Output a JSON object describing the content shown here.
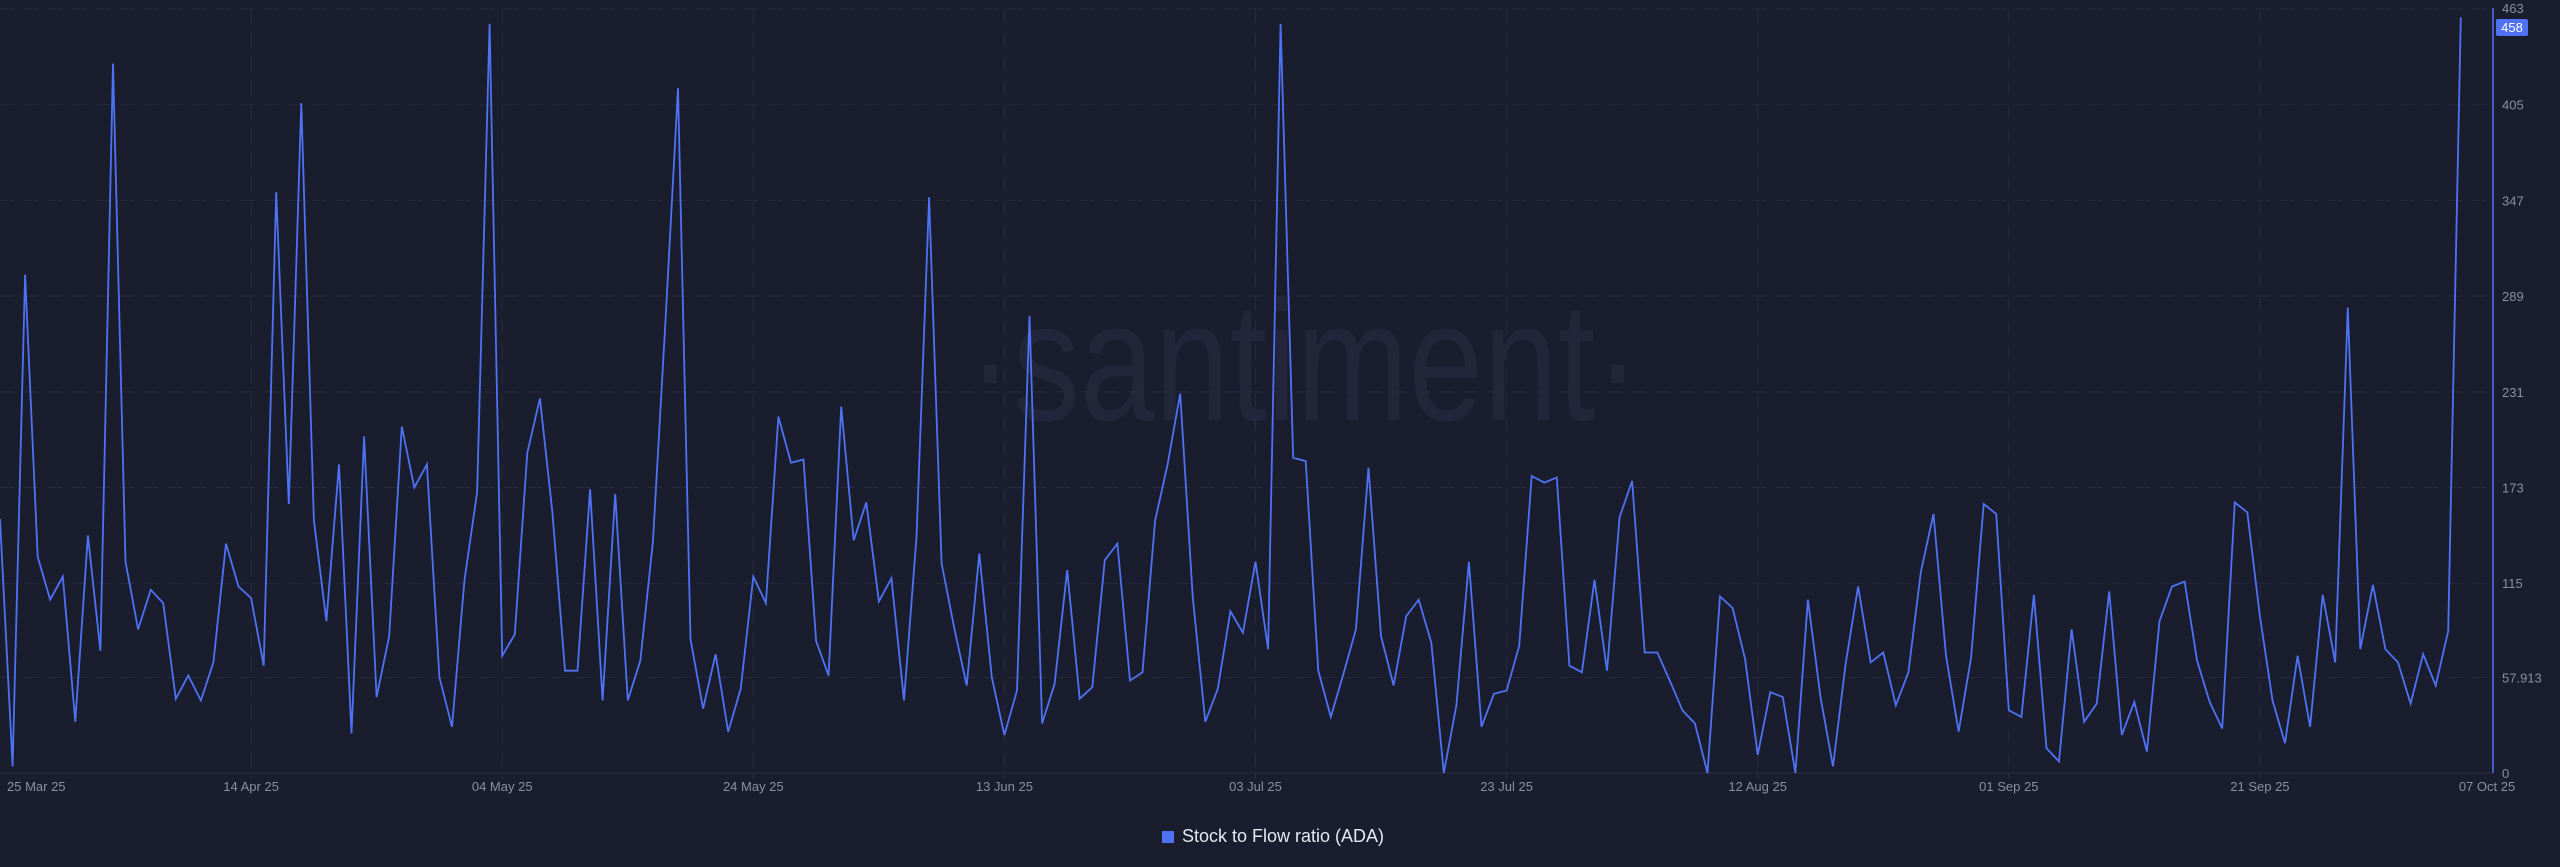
{
  "watermark": "·santiment·",
  "colors": {
    "background": "#1a1d2e",
    "series": "#4f72f5",
    "grid": "#272b3d",
    "tick_text": "#8a8fa3"
  },
  "chart_data": {
    "type": "line",
    "x_range": [
      "25 Mar 25",
      "07 Oct 25"
    ],
    "interval": "1d",
    "x_ticks": [
      "25 Mar 25",
      "14 Apr 25",
      "04 May 25",
      "24 May 25",
      "13 Jun 25",
      "03 Jul 25",
      "23 Jul 25",
      "12 Aug 25",
      "01 Sep 25",
      "21 Sep 25",
      "07 Oct 25"
    ],
    "y_ticks": [
      "0",
      "57.913",
      "115",
      "173",
      "231",
      "289",
      "347",
      "405",
      "463"
    ],
    "ylim": [
      0,
      463
    ],
    "y_axis_position": "right",
    "grid": true,
    "legend_position": "bottom-center",
    "last_value_badge": "458",
    "series": [
      {
        "name": "Stock to Flow ratio (ADA)",
        "values": [
          154,
          4,
          302,
          131,
          105,
          119,
          31,
          144,
          74,
          430,
          128,
          87,
          111,
          103,
          45,
          59,
          44,
          67,
          139,
          113,
          106,
          65,
          352,
          163,
          406,
          153,
          92,
          187,
          24,
          204,
          46,
          83,
          210,
          173,
          187,
          58,
          28,
          117,
          170,
          454,
          71,
          84,
          194,
          227,
          158,
          62,
          62,
          172,
          44,
          169,
          44,
          68,
          140,
          273,
          415,
          81,
          39,
          72,
          25,
          51,
          119,
          103,
          216,
          188,
          190,
          80,
          59,
          222,
          141,
          164,
          104,
          118,
          44,
          143,
          349,
          127,
          88,
          53,
          133,
          58,
          23,
          50,
          277,
          30,
          54,
          123,
          45,
          52,
          129,
          139,
          56,
          61,
          153,
          187,
          230,
          107,
          31,
          51,
          98,
          85,
          128,
          75,
          454,
          191,
          189,
          62,
          34,
          60,
          87,
          185,
          83,
          53,
          95,
          105,
          79,
          0,
          41,
          128,
          28,
          48,
          50,
          77,
          180,
          176,
          179,
          65,
          61,
          117,
          62,
          155,
          177,
          73,
          73,
          56,
          38,
          30,
          0,
          107,
          100,
          69,
          11,
          49,
          46,
          0,
          105,
          46,
          4,
          66,
          113,
          67,
          73,
          41,
          61,
          122,
          157,
          71,
          25,
          70,
          163,
          157,
          38,
          34,
          108,
          15,
          7,
          87,
          31,
          42,
          110,
          23,
          43,
          13,
          92,
          113,
          116,
          68,
          43,
          27,
          164,
          158,
          95,
          44,
          18,
          71,
          28,
          108,
          67,
          282,
          75,
          114,
          75,
          67,
          42,
          72,
          53,
          86,
          458
        ]
      }
    ]
  }
}
